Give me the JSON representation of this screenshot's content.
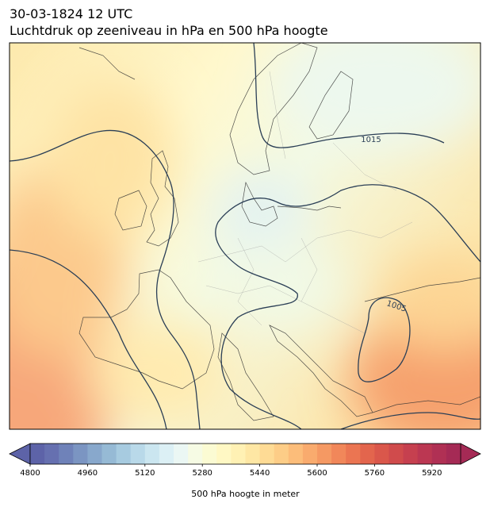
{
  "title": "30-03-1824 12 UTC",
  "subtitle": "Luchtdruk op zeeniveau in hPa en 500 hPa hoogte",
  "contour_labels": [
    1015,
    1005
  ],
  "colorbar": {
    "label": "500 hPa hoogte in meter",
    "lim": [
      4800,
      6000
    ],
    "ticks": [
      4800,
      4960,
      5120,
      5280,
      5440,
      5600,
      5760,
      5920
    ],
    "colors": [
      "#5d63a8",
      "#6670b0",
      "#6f82b9",
      "#7b95c2",
      "#88a8cc",
      "#96bad5",
      "#a7cbe0",
      "#b9d9e9",
      "#cbe6f0",
      "#dcf0f5",
      "#ebf7f4",
      "#f6fbe4",
      "#fbfbd3",
      "#fff8c4",
      "#fff1b4",
      "#fee7a4",
      "#fedb95",
      "#fdcd87",
      "#fcbd7a",
      "#f9ab6e",
      "#f59963",
      "#f1875a",
      "#eb7552",
      "#e3654d",
      "#da574b",
      "#d04b4c",
      "#c6404f",
      "#bb3752",
      "#b03054",
      "#a52a55"
    ]
  }
}
